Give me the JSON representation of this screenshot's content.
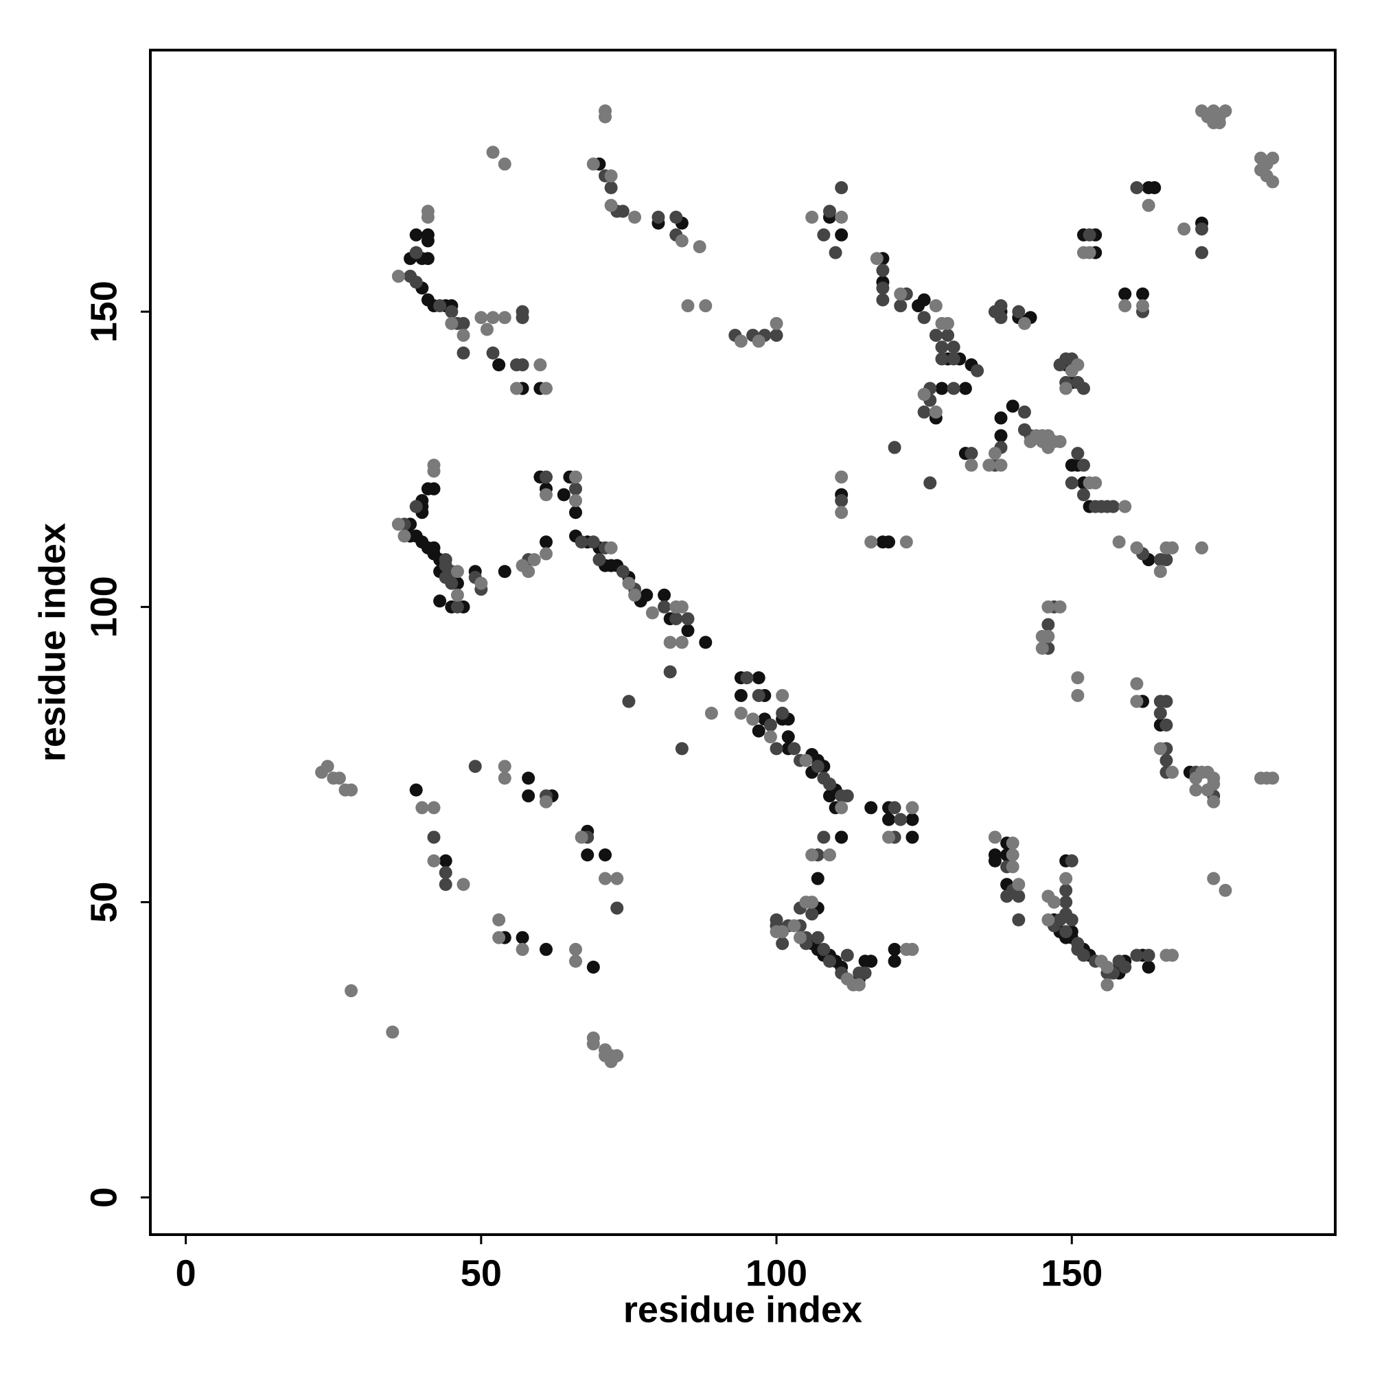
{
  "chart_data": {
    "type": "scatter",
    "xlabel": "residue index",
    "ylabel": "residue index",
    "xlim": [
      -6,
      194.6
    ],
    "ylim": [
      -6.3,
      194.3
    ],
    "xticks": [
      0,
      50,
      100,
      150
    ],
    "yticks": [
      0,
      50,
      100,
      150
    ],
    "series": [
      {
        "color": "#111111",
        "x": [
          39,
          41,
          41,
          38,
          40,
          41,
          40,
          41,
          42,
          44,
          45,
          53,
          57,
          60,
          70,
          80,
          84,
          109,
          111,
          118,
          118,
          124,
          125,
          129,
          131,
          133,
          127,
          128,
          132,
          132,
          138,
          138,
          140,
          138,
          141,
          143,
          149,
          150,
          150,
          151,
          152,
          153,
          152,
          154,
          154,
          159,
          162,
          163,
          164,
          172,
          41,
          42,
          40,
          40,
          40,
          38,
          38,
          39,
          40,
          41,
          42,
          42,
          43,
          43,
          46,
          43,
          45,
          47,
          49,
          54,
          61,
          60,
          61,
          65,
          64,
          66,
          66,
          68,
          70,
          71,
          72,
          73,
          75,
          77,
          78,
          81,
          82,
          85,
          88,
          94,
          94,
          97,
          98,
          98,
          97,
          101,
          102,
          102,
          102,
          106,
          106,
          107,
          108,
          109,
          110,
          110,
          111,
          107,
          107,
          106,
          107,
          108,
          109,
          110,
          111,
          115,
          116,
          114,
          120,
          120,
          116,
          119,
          119,
          123,
          123,
          139,
          137,
          139,
          137,
          139,
          147,
          149,
          148,
          150,
          149,
          150,
          152,
          153,
          158,
          158,
          159,
          162,
          163,
          162,
          165,
          170,
          163,
          118,
          119,
          111,
          39,
          44,
          58,
          58,
          62,
          54,
          57,
          61,
          69,
          68,
          68,
          71
        ],
        "values": [
          163,
          163,
          162,
          159,
          159,
          159,
          154,
          152,
          151,
          151,
          151,
          141,
          137,
          137,
          175,
          165,
          165,
          166,
          163,
          159,
          155,
          151,
          152,
          142,
          142,
          141,
          132,
          137,
          137,
          126,
          129,
          132,
          134,
          150,
          149,
          149,
          141,
          138,
          124,
          124,
          121,
          117,
          163,
          163,
          160,
          153,
          153,
          171,
          171,
          165,
          120,
          120,
          118,
          117,
          116,
          114,
          112,
          112,
          111,
          110,
          110,
          109,
          108,
          106,
          104,
          101,
          100,
          100,
          106,
          106,
          111,
          122,
          120,
          122,
          119,
          116,
          112,
          111,
          110,
          107,
          107,
          107,
          105,
          101,
          102,
          102,
          98,
          96,
          94,
          88,
          85,
          88,
          85,
          81,
          79,
          81,
          81,
          78,
          76,
          75,
          72,
          74,
          73,
          68,
          69,
          66,
          61,
          54,
          49,
          43,
          42,
          41,
          41,
          40,
          39,
          40,
          40,
          37,
          40,
          42,
          66,
          66,
          64,
          64,
          61,
          60,
          58,
          58,
          57,
          53,
          47,
          57,
          45,
          45,
          44,
          44,
          42,
          41,
          38,
          39,
          40,
          41,
          39,
          84,
          80,
          72,
          108,
          111,
          111,
          119,
          69,
          57,
          71,
          68,
          68,
          44,
          44,
          42,
          39,
          62,
          58,
          58
        ]
      },
      {
        "color": "#454545",
        "x": [
          39,
          38,
          39,
          43,
          45,
          46,
          47,
          47,
          57,
          57,
          56,
          57,
          52,
          71,
          72,
          73,
          74,
          80,
          83,
          83,
          93,
          96,
          98,
          100,
          109,
          111,
          108,
          110,
          118,
          118,
          118,
          122,
          121,
          125,
          127,
          128,
          129,
          130,
          128,
          130,
          134,
          126,
          126,
          125,
          130,
          120,
          126,
          133,
          137,
          138,
          142,
          142,
          143,
          137,
          138,
          138,
          141,
          148,
          149,
          150,
          149,
          151,
          152,
          151,
          152,
          150,
          152,
          154,
          155,
          156,
          157,
          153,
          162,
          161,
          172,
          172,
          39,
          37,
          44,
          44,
          45,
          44,
          45,
          46,
          49,
          50,
          58,
          61,
          66,
          67,
          69,
          71,
          70,
          74,
          76,
          81,
          83,
          85,
          82,
          75,
          84,
          95,
          97,
          99,
          100,
          101,
          103,
          104,
          107,
          108,
          109,
          111,
          112,
          108,
          107,
          104,
          106,
          100,
          100,
          102,
          101,
          104,
          105,
          105,
          108,
          107,
          109,
          111,
          114,
          115,
          112,
          120,
          121,
          120,
          139,
          140,
          139,
          141,
          141,
          148,
          147,
          149,
          150,
          149,
          149,
          150,
          149,
          151,
          151,
          152,
          154,
          156,
          157,
          158,
          159,
          161,
          163,
          146,
          146,
          147,
          165,
          166,
          165,
          166,
          166,
          166,
          166,
          171,
          174,
          162,
          165,
          166,
          111,
          42,
          44,
          44,
          49,
          61,
          68,
          73
        ],
        "values": [
          160,
          156,
          155,
          151,
          150,
          148,
          148,
          143,
          150,
          149,
          141,
          141,
          143,
          173,
          171,
          167,
          167,
          166,
          166,
          163,
          146,
          146,
          146,
          146,
          167,
          171,
          163,
          160,
          157,
          154,
          152,
          153,
          151,
          149,
          146,
          144,
          146,
          144,
          142,
          142,
          140,
          137,
          135,
          133,
          137,
          127,
          121,
          126,
          124,
          127,
          133,
          130,
          129,
          150,
          151,
          149,
          150,
          141,
          142,
          142,
          138,
          138,
          137,
          126,
          124,
          121,
          119,
          117,
          117,
          117,
          117,
          163,
          150,
          171,
          164,
          160,
          117,
          114,
          108,
          107,
          106,
          105,
          104,
          100,
          105,
          103,
          108,
          122,
          120,
          111,
          111,
          110,
          108,
          106,
          103,
          100,
          98,
          98,
          89,
          84,
          76,
          88,
          85,
          80,
          76,
          82,
          76,
          74,
          73,
          71,
          70,
          68,
          68,
          61,
          58,
          49,
          48,
          47,
          46,
          46,
          43,
          46,
          44,
          43,
          42,
          44,
          40,
          38,
          38,
          38,
          41,
          66,
          64,
          61,
          56,
          52,
          51,
          51,
          47,
          47,
          46,
          52,
          57,
          50,
          48,
          47,
          45,
          43,
          42,
          41,
          40,
          38,
          38,
          40,
          39,
          41,
          41,
          93,
          97,
          100,
          84,
          84,
          82,
          80,
          76,
          74,
          72,
          72,
          68,
          109,
          108,
          108,
          118,
          61,
          55,
          53,
          73,
          68,
          61,
          49
        ]
      },
      {
        "color": "#7a7a7a",
        "x": [
          41,
          41,
          36,
          45,
          47,
          50,
          51,
          52,
          54,
          56,
          60,
          61,
          52,
          54,
          71,
          71,
          69,
          72,
          72,
          76,
          84,
          87,
          85,
          88,
          94,
          97,
          100,
          106,
          111,
          117,
          121,
          127,
          128,
          129,
          125,
          127,
          133,
          136,
          138,
          137,
          144,
          145,
          146,
          147,
          148,
          143,
          145,
          146,
          142,
          150,
          151,
          149,
          153,
          154,
          159,
          152,
          153,
          159,
          162,
          163,
          169,
          172,
          173,
          174,
          175,
          176,
          175,
          174,
          182,
          183,
          184,
          183,
          184,
          182,
          42,
          42,
          36,
          37,
          46,
          46,
          50,
          57,
          58,
          59,
          61,
          61,
          66,
          66,
          72,
          75,
          76,
          79,
          83,
          84,
          84,
          82,
          89,
          94,
          96,
          99,
          101,
          105,
          111,
          106,
          109,
          105,
          106,
          101,
          103,
          100,
          104,
          112,
          113,
          114,
          122,
          123,
          123,
          119,
          137,
          140,
          140,
          140,
          141,
          146,
          146,
          147,
          149,
          155,
          156,
          156,
          166,
          167,
          145,
          145,
          146,
          146,
          148,
          151,
          151,
          161,
          161,
          165,
          167,
          171,
          172,
          173,
          171,
          173,
          174,
          174,
          174,
          182,
          183,
          184,
          174,
          176,
          158,
          161,
          165,
          166,
          167,
          172,
          116,
          122,
          111,
          111,
          23,
          24,
          25,
          26,
          27,
          28,
          40,
          42,
          42,
          47,
          54,
          54,
          61,
          53,
          53,
          57,
          66,
          66,
          67,
          71,
          73,
          28,
          35,
          69,
          69,
          71,
          72,
          71,
          73,
          72
        ],
        "values": [
          167,
          166,
          156,
          148,
          146,
          149,
          147,
          149,
          149,
          137,
          141,
          137,
          177,
          175,
          184,
          183,
          175,
          173,
          168,
          166,
          162,
          161,
          151,
          151,
          145,
          145,
          148,
          166,
          166,
          159,
          153,
          151,
          148,
          148,
          136,
          133,
          124,
          124,
          124,
          126,
          129,
          129,
          129,
          128,
          128,
          128,
          128,
          127,
          148,
          140,
          141,
          137,
          121,
          121,
          117,
          160,
          160,
          151,
          151,
          168,
          164,
          184,
          183,
          184,
          183,
          184,
          182,
          182,
          176,
          175,
          176,
          173,
          172,
          174,
          124,
          123,
          114,
          112,
          106,
          102,
          104,
          107,
          106,
          108,
          109,
          119,
          122,
          118,
          110,
          104,
          102,
          99,
          100,
          100,
          94,
          94,
          82,
          82,
          81,
          78,
          85,
          74,
          66,
          58,
          58,
          50,
          50,
          45,
          46,
          45,
          44,
          37,
          36,
          36,
          42,
          42,
          66,
          61,
          61,
          60,
          58,
          56,
          53,
          47,
          51,
          50,
          54,
          40,
          39,
          36,
          41,
          41,
          93,
          95,
          95,
          100,
          100,
          88,
          85,
          87,
          84,
          76,
          72,
          71,
          72,
          72,
          69,
          69,
          70,
          67,
          71,
          71,
          71,
          71,
          54,
          52,
          111,
          110,
          106,
          110,
          110,
          110,
          111,
          111,
          122,
          116,
          72,
          73,
          71,
          71,
          69,
          69,
          66,
          66,
          57,
          53,
          73,
          71,
          67,
          47,
          44,
          42,
          42,
          40,
          61,
          54,
          54,
          35,
          28,
          27,
          26,
          25,
          24,
          24,
          24,
          23
        ]
      }
    ]
  }
}
